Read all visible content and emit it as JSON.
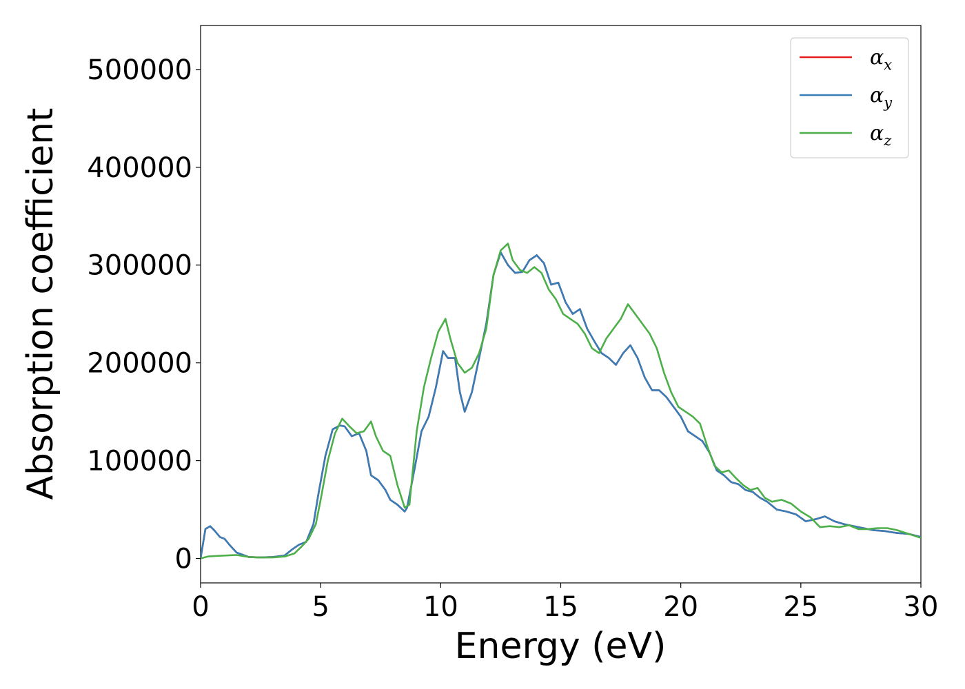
{
  "chart_data": {
    "type": "line",
    "xlabel": "Energy (eV)",
    "ylabel": "Absorption coefficient",
    "xlim": [
      0,
      30
    ],
    "ylim": [
      -25000,
      545000
    ],
    "xticks": [
      0,
      5,
      10,
      15,
      20,
      25,
      30
    ],
    "yticks": [
      0,
      100000,
      200000,
      300000,
      400000,
      500000
    ],
    "legend_placement": "top-right",
    "grid": false,
    "series": [
      {
        "name": "α_x",
        "base": "α",
        "sub": "x",
        "color": "#e41a1c",
        "x": [
          0,
          0.2,
          0.4,
          0.6,
          0.8,
          1.0,
          1.2,
          1.5,
          2,
          2.5,
          3,
          3.5,
          3.8,
          4.1,
          4.4,
          4.7,
          4.9,
          5.2,
          5.5,
          5.8,
          6.0,
          6.3,
          6.6,
          6.9,
          7.1,
          7.4,
          7.7,
          7.9,
          8.2,
          8.5,
          8.6,
          8.9,
          9.2,
          9.5,
          9.8,
          10.1,
          10.3,
          10.6,
          10.8,
          11.0,
          11.3,
          11.6,
          11.9,
          12.2,
          12.5,
          12.8,
          13.1,
          13.4,
          13.7,
          14.0,
          14.3,
          14.6,
          14.9,
          15.2,
          15.5,
          15.8,
          16.1,
          16.4,
          16.7,
          17.0,
          17.3,
          17.6,
          17.9,
          18.2,
          18.5,
          18.8,
          19.1,
          19.4,
          19.7,
          20.0,
          20.3,
          20.6,
          20.9,
          21.2,
          21.5,
          21.8,
          22.1,
          22.4,
          22.7,
          23.0,
          23.3,
          23.6,
          24.0,
          24.4,
          24.8,
          25.2,
          25.6,
          26.0,
          26.4,
          26.8,
          27.2,
          27.6,
          28.0,
          28.5,
          29.0,
          29.5,
          30.0
        ],
        "y": [
          0,
          30000,
          33000,
          28000,
          22000,
          20000,
          14000,
          6000,
          1500,
          1000,
          1500,
          3000,
          9000,
          14000,
          17000,
          35000,
          65000,
          105000,
          132000,
          136000,
          135000,
          125000,
          128000,
          110000,
          85000,
          80000,
          70000,
          60000,
          55000,
          48000,
          52000,
          90000,
          130000,
          145000,
          175000,
          212000,
          205000,
          205000,
          170000,
          150000,
          170000,
          205000,
          240000,
          290000,
          313000,
          300000,
          292000,
          293000,
          305000,
          310000,
          302000,
          280000,
          282000,
          262000,
          250000,
          255000,
          235000,
          222000,
          210000,
          205000,
          198000,
          210000,
          218000,
          205000,
          185000,
          172000,
          172000,
          165000,
          155000,
          145000,
          130000,
          125000,
          120000,
          108000,
          90000,
          85000,
          78000,
          76000,
          70000,
          68000,
          62000,
          58000,
          50000,
          48000,
          45000,
          38000,
          40000,
          43000,
          38000,
          35000,
          33000,
          31000,
          29000,
          28000,
          26000,
          25000,
          22000
        ]
      },
      {
        "name": "α_y",
        "base": "α",
        "sub": "y",
        "color": "#377eb8",
        "x": [
          0,
          0.2,
          0.4,
          0.6,
          0.8,
          1.0,
          1.2,
          1.5,
          2,
          2.5,
          3,
          3.5,
          3.8,
          4.1,
          4.4,
          4.7,
          4.9,
          5.2,
          5.5,
          5.8,
          6.0,
          6.3,
          6.6,
          6.9,
          7.1,
          7.4,
          7.7,
          7.9,
          8.2,
          8.5,
          8.6,
          8.9,
          9.2,
          9.5,
          9.8,
          10.1,
          10.3,
          10.6,
          10.8,
          11.0,
          11.3,
          11.6,
          11.9,
          12.2,
          12.5,
          12.8,
          13.1,
          13.4,
          13.7,
          14.0,
          14.3,
          14.6,
          14.9,
          15.2,
          15.5,
          15.8,
          16.1,
          16.4,
          16.7,
          17.0,
          17.3,
          17.6,
          17.9,
          18.2,
          18.5,
          18.8,
          19.1,
          19.4,
          19.7,
          20.0,
          20.3,
          20.6,
          20.9,
          21.2,
          21.5,
          21.8,
          22.1,
          22.4,
          22.7,
          23.0,
          23.3,
          23.6,
          24.0,
          24.4,
          24.8,
          25.2,
          25.6,
          26.0,
          26.4,
          26.8,
          27.2,
          27.6,
          28.0,
          28.5,
          29.0,
          29.5,
          30.0
        ],
        "y": [
          0,
          30000,
          33000,
          28000,
          22000,
          20000,
          14000,
          6000,
          1500,
          1000,
          1500,
          3000,
          9000,
          14000,
          17000,
          35000,
          65000,
          105000,
          132000,
          136000,
          135000,
          125000,
          128000,
          110000,
          85000,
          80000,
          70000,
          60000,
          55000,
          48000,
          52000,
          90000,
          130000,
          145000,
          175000,
          212000,
          205000,
          205000,
          170000,
          150000,
          170000,
          205000,
          240000,
          290000,
          313000,
          300000,
          292000,
          293000,
          305000,
          310000,
          302000,
          280000,
          282000,
          262000,
          250000,
          255000,
          235000,
          222000,
          210000,
          205000,
          198000,
          210000,
          218000,
          205000,
          185000,
          172000,
          172000,
          165000,
          155000,
          145000,
          130000,
          125000,
          120000,
          108000,
          90000,
          85000,
          78000,
          76000,
          70000,
          68000,
          62000,
          58000,
          50000,
          48000,
          45000,
          38000,
          40000,
          43000,
          38000,
          35000,
          33000,
          31000,
          29000,
          28000,
          26000,
          25000,
          22000
        ]
      },
      {
        "name": "α_z",
        "base": "α",
        "sub": "z",
        "color": "#4daf4a",
        "x": [
          0,
          0.3,
          0.6,
          1.0,
          1.5,
          2,
          2.5,
          3,
          3.5,
          3.9,
          4.2,
          4.5,
          4.8,
          5.0,
          5.3,
          5.6,
          5.9,
          6.2,
          6.5,
          6.8,
          7.1,
          7.3,
          7.6,
          7.9,
          8.2,
          8.5,
          8.7,
          9.0,
          9.3,
          9.6,
          9.9,
          10.2,
          10.4,
          10.7,
          11.0,
          11.3,
          11.6,
          11.9,
          12.2,
          12.5,
          12.8,
          13.0,
          13.3,
          13.6,
          13.9,
          14.2,
          14.5,
          14.8,
          15.1,
          15.4,
          15.7,
          16.0,
          16.3,
          16.6,
          16.9,
          17.2,
          17.5,
          17.8,
          18.1,
          18.4,
          18.7,
          19.0,
          19.3,
          19.6,
          19.9,
          20.2,
          20.5,
          20.8,
          21.1,
          21.4,
          21.7,
          22.0,
          22.3,
          22.6,
          22.9,
          23.2,
          23.5,
          23.8,
          24.2,
          24.6,
          25.0,
          25.4,
          25.8,
          26.2,
          26.6,
          27.0,
          27.4,
          27.8,
          28.2,
          28.6,
          29.0,
          29.5,
          30.0
        ],
        "y": [
          0,
          2000,
          2500,
          3000,
          3500,
          1500,
          1000,
          1000,
          2000,
          5000,
          12000,
          20000,
          35000,
          60000,
          100000,
          128000,
          143000,
          135000,
          128000,
          130000,
          140000,
          125000,
          110000,
          105000,
          75000,
          52000,
          55000,
          130000,
          175000,
          205000,
          232000,
          245000,
          225000,
          200000,
          190000,
          195000,
          210000,
          235000,
          290000,
          315000,
          322000,
          305000,
          295000,
          292000,
          298000,
          292000,
          275000,
          265000,
          250000,
          245000,
          240000,
          230000,
          215000,
          210000,
          225000,
          235000,
          245000,
          260000,
          250000,
          240000,
          230000,
          215000,
          190000,
          170000,
          155000,
          150000,
          145000,
          138000,
          115000,
          95000,
          88000,
          90000,
          82000,
          75000,
          70000,
          72000,
          62000,
          58000,
          60000,
          56000,
          48000,
          42000,
          32000,
          33000,
          32000,
          34000,
          30000,
          30000,
          31000,
          31000,
          29000,
          25000,
          21000
        ]
      }
    ]
  }
}
